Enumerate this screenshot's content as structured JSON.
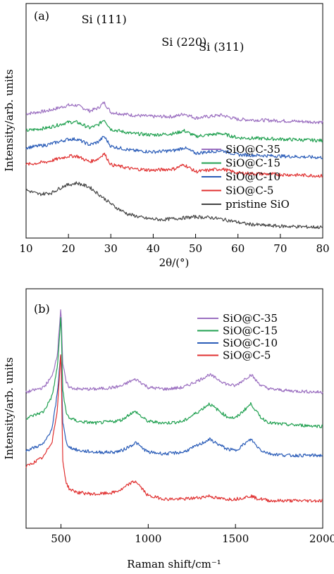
{
  "chart_data": [
    {
      "type": "line",
      "panel_label": "(a)",
      "xlabel": "2θ/(°)",
      "ylabel": "Intensity/arb. units",
      "xlim": [
        10,
        80
      ],
      "x_ticks": [
        "10",
        "20",
        "30",
        "40",
        "50",
        "60",
        "70",
        "80"
      ],
      "y_ticks_labeled": false,
      "annotations": [
        {
          "text": "Si (111)",
          "x": 28.4
        },
        {
          "text": "Si (220)",
          "x": 47.3
        },
        {
          "text": "Si (311)",
          "x": 56.1
        }
      ],
      "legend_position": "lower-right",
      "series": [
        {
          "name": "SiO@C-35",
          "color": "#9b6fc0",
          "x": [
            10,
            15,
            20,
            22,
            25,
            27,
            28.4,
            30,
            35,
            40,
            45,
            47.3,
            50,
            53,
            56.1,
            60,
            70,
            80
          ],
          "values": [
            5.4,
            5.5,
            5.7,
            5.7,
            5.5,
            5.6,
            5.8,
            5.45,
            5.35,
            5.3,
            5.3,
            5.4,
            5.25,
            5.3,
            5.35,
            5.2,
            5.15,
            5.1
          ]
        },
        {
          "name": "SiO@C-15",
          "color": "#20a050",
          "x": [
            10,
            15,
            20,
            22,
            25,
            27,
            28.4,
            30,
            35,
            40,
            45,
            47.3,
            50,
            53,
            56.1,
            60,
            70,
            80
          ],
          "values": [
            4.8,
            4.9,
            5.1,
            5.1,
            4.9,
            5.0,
            5.2,
            4.85,
            4.7,
            4.65,
            4.7,
            4.8,
            4.6,
            4.65,
            4.7,
            4.55,
            4.5,
            4.45
          ]
        },
        {
          "name": "SiO@C-10",
          "color": "#2a5cb8",
          "x": [
            10,
            15,
            20,
            22,
            25,
            27,
            28.4,
            30,
            35,
            40,
            45,
            47.3,
            50,
            53,
            56.1,
            60,
            70,
            80
          ],
          "values": [
            4.2,
            4.3,
            4.5,
            4.5,
            4.3,
            4.4,
            4.6,
            4.25,
            4.1,
            4.05,
            4.1,
            4.2,
            4.0,
            4.05,
            4.1,
            3.95,
            3.9,
            3.85
          ]
        },
        {
          "name": "SiO@C-5",
          "color": "#e03030",
          "x": [
            10,
            15,
            20,
            22,
            25,
            27,
            28.4,
            30,
            35,
            40,
            45,
            47.3,
            50,
            53,
            56.1,
            60,
            70,
            80
          ],
          "values": [
            3.6,
            3.7,
            3.9,
            3.9,
            3.7,
            3.8,
            4.0,
            3.6,
            3.45,
            3.4,
            3.45,
            3.6,
            3.35,
            3.4,
            3.45,
            3.3,
            3.25,
            3.2
          ]
        },
        {
          "name": "pristine SiO",
          "color": "#444444",
          "x": [
            10,
            13,
            16,
            19,
            22,
            25,
            28,
            31,
            34,
            38,
            42,
            46,
            50,
            54,
            58,
            62,
            66,
            70,
            75,
            80
          ],
          "values": [
            2.7,
            2.55,
            2.6,
            2.85,
            2.95,
            2.8,
            2.45,
            2.1,
            1.85,
            1.7,
            1.65,
            1.7,
            1.75,
            1.72,
            1.62,
            1.5,
            1.45,
            1.42,
            1.4,
            1.38
          ]
        }
      ]
    },
    {
      "type": "line",
      "panel_label": "(b)",
      "xlabel": "Raman shift/cm⁻¹",
      "ylabel": "Intensity/arb. units",
      "xlim": [
        300,
        2000
      ],
      "x_ticks": [
        "500",
        "1000",
        "1500",
        "2000"
      ],
      "y_ticks_labeled": false,
      "legend_position": "top-right",
      "series": [
        {
          "name": "SiO@C-35",
          "color": "#9b6fc0",
          "x": [
            300,
            400,
            450,
            480,
            500,
            510,
            530,
            550,
            600,
            700,
            800,
            850,
            900,
            930,
            960,
            1000,
            1100,
            1200,
            1300,
            1350,
            1400,
            1450,
            1500,
            1550,
            1590,
            1620,
            1650,
            1700,
            1800,
            2000
          ],
          "values": [
            6.4,
            6.55,
            6.9,
            7.6,
            9.1,
            7.3,
            6.7,
            6.55,
            6.5,
            6.5,
            6.55,
            6.6,
            6.75,
            6.8,
            6.7,
            6.55,
            6.5,
            6.55,
            6.8,
            6.95,
            6.8,
            6.65,
            6.6,
            6.8,
            6.95,
            6.75,
            6.6,
            6.5,
            6.45,
            6.4
          ]
        },
        {
          "name": "SiO@C-15",
          "color": "#20a050",
          "x": [
            300,
            400,
            450,
            480,
            500,
            510,
            530,
            550,
            600,
            700,
            800,
            850,
            900,
            930,
            960,
            1000,
            1100,
            1200,
            1300,
            1350,
            1400,
            1450,
            1500,
            1550,
            1590,
            1620,
            1650,
            1700,
            1800,
            2000
          ],
          "values": [
            5.6,
            5.8,
            6.3,
            7.2,
            8.8,
            6.5,
            5.75,
            5.6,
            5.5,
            5.45,
            5.5,
            5.55,
            5.75,
            5.8,
            5.65,
            5.5,
            5.45,
            5.5,
            5.85,
            6.05,
            5.85,
            5.65,
            5.6,
            5.85,
            6.05,
            5.8,
            5.6,
            5.45,
            5.4,
            5.35
          ]
        },
        {
          "name": "SiO@C-10",
          "color": "#2a5cb8",
          "x": [
            300,
            400,
            450,
            480,
            500,
            510,
            530,
            550,
            600,
            700,
            800,
            850,
            900,
            930,
            960,
            1000,
            1100,
            1200,
            1300,
            1350,
            1400,
            1450,
            1500,
            1550,
            1590,
            1620,
            1650,
            1700,
            1800,
            2000
          ],
          "values": [
            4.6,
            4.8,
            5.3,
            6.4,
            7.7,
            5.5,
            4.85,
            4.7,
            4.6,
            4.55,
            4.55,
            4.6,
            4.75,
            4.85,
            4.7,
            4.55,
            4.5,
            4.55,
            4.8,
            4.95,
            4.8,
            4.65,
            4.6,
            4.8,
            4.95,
            4.75,
            4.6,
            4.5,
            4.45,
            4.45
          ]
        },
        {
          "name": "SiO@C-5",
          "color": "#e03030",
          "x": [
            300,
            400,
            450,
            480,
            500,
            510,
            530,
            550,
            600,
            700,
            800,
            850,
            900,
            930,
            960,
            1000,
            1100,
            1200,
            1300,
            1350,
            1400,
            1450,
            1500,
            1550,
            1590,
            1620,
            1650,
            1700,
            1800,
            2000
          ],
          "values": [
            4.1,
            4.4,
            4.9,
            5.9,
            7.7,
            4.3,
            3.6,
            3.4,
            3.3,
            3.25,
            3.3,
            3.4,
            3.6,
            3.65,
            3.45,
            3.2,
            3.1,
            3.1,
            3.15,
            3.2,
            3.12,
            3.1,
            3.1,
            3.15,
            3.2,
            3.12,
            3.1,
            3.05,
            3.05,
            3.05
          ]
        }
      ]
    }
  ]
}
